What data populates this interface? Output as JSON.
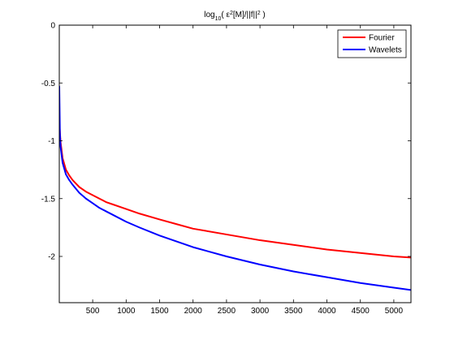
{
  "chart_data": {
    "type": "line",
    "title": {
      "parts": [
        {
          "text": "log",
          "role": "base"
        },
        {
          "text": "10",
          "role": "sub"
        },
        {
          "text": "( ε",
          "role": "base"
        },
        {
          "text": "2",
          "role": "sup"
        },
        {
          "text": "[M]/||f||",
          "role": "base"
        },
        {
          "text": "2",
          "role": "sup"
        },
        {
          "text": " )",
          "role": "base"
        }
      ]
    },
    "xlabel": "",
    "ylabel": "",
    "xlim": [
      1,
      5256
    ],
    "ylim": [
      -2.4,
      0
    ],
    "xticks": [
      500,
      1000,
      1500,
      2000,
      2500,
      3000,
      3500,
      4000,
      4500,
      5000
    ],
    "xtick_labels": [
      "500",
      "1000",
      "1500",
      "2000",
      "2500",
      "3000",
      "3500",
      "4000",
      "4500",
      "5000"
    ],
    "yticks": [
      0,
      -0.5,
      -1,
      -1.5,
      -2
    ],
    "ytick_labels": [
      "0",
      "-0.5",
      "-1",
      "-1.5",
      "-2"
    ],
    "grid": false,
    "legend": {
      "position": "top-right"
    },
    "series": [
      {
        "name": "Fourier",
        "color": "#ff0000",
        "x": [
          1,
          20,
          50,
          100,
          150,
          200,
          300,
          400,
          500,
          600,
          700,
          800,
          1000,
          1200,
          1500,
          1750,
          2000,
          2500,
          3000,
          3500,
          4000,
          4500,
          5000,
          5256
        ],
        "y": [
          -0.84,
          -1.01,
          -1.15,
          -1.25,
          -1.3,
          -1.34,
          -1.4,
          -1.44,
          -1.47,
          -1.5,
          -1.53,
          -1.55,
          -1.59,
          -1.63,
          -1.68,
          -1.72,
          -1.76,
          -1.81,
          -1.86,
          -1.9,
          -1.94,
          -1.97,
          -2.0,
          -2.01
        ]
      },
      {
        "name": "Wavelets",
        "color": "#0000ff",
        "x": [
          1,
          10,
          20,
          50,
          100,
          150,
          200,
          300,
          400,
          500,
          600,
          700,
          800,
          1000,
          1200,
          1500,
          1750,
          2000,
          2500,
          3000,
          3500,
          4000,
          4500,
          5000,
          5256
        ],
        "y": [
          -0.53,
          -0.93,
          -1.05,
          -1.19,
          -1.29,
          -1.34,
          -1.38,
          -1.45,
          -1.5,
          -1.54,
          -1.58,
          -1.61,
          -1.64,
          -1.7,
          -1.75,
          -1.82,
          -1.87,
          -1.92,
          -2.0,
          -2.07,
          -2.13,
          -2.18,
          -2.23,
          -2.27,
          -2.29
        ]
      }
    ]
  }
}
